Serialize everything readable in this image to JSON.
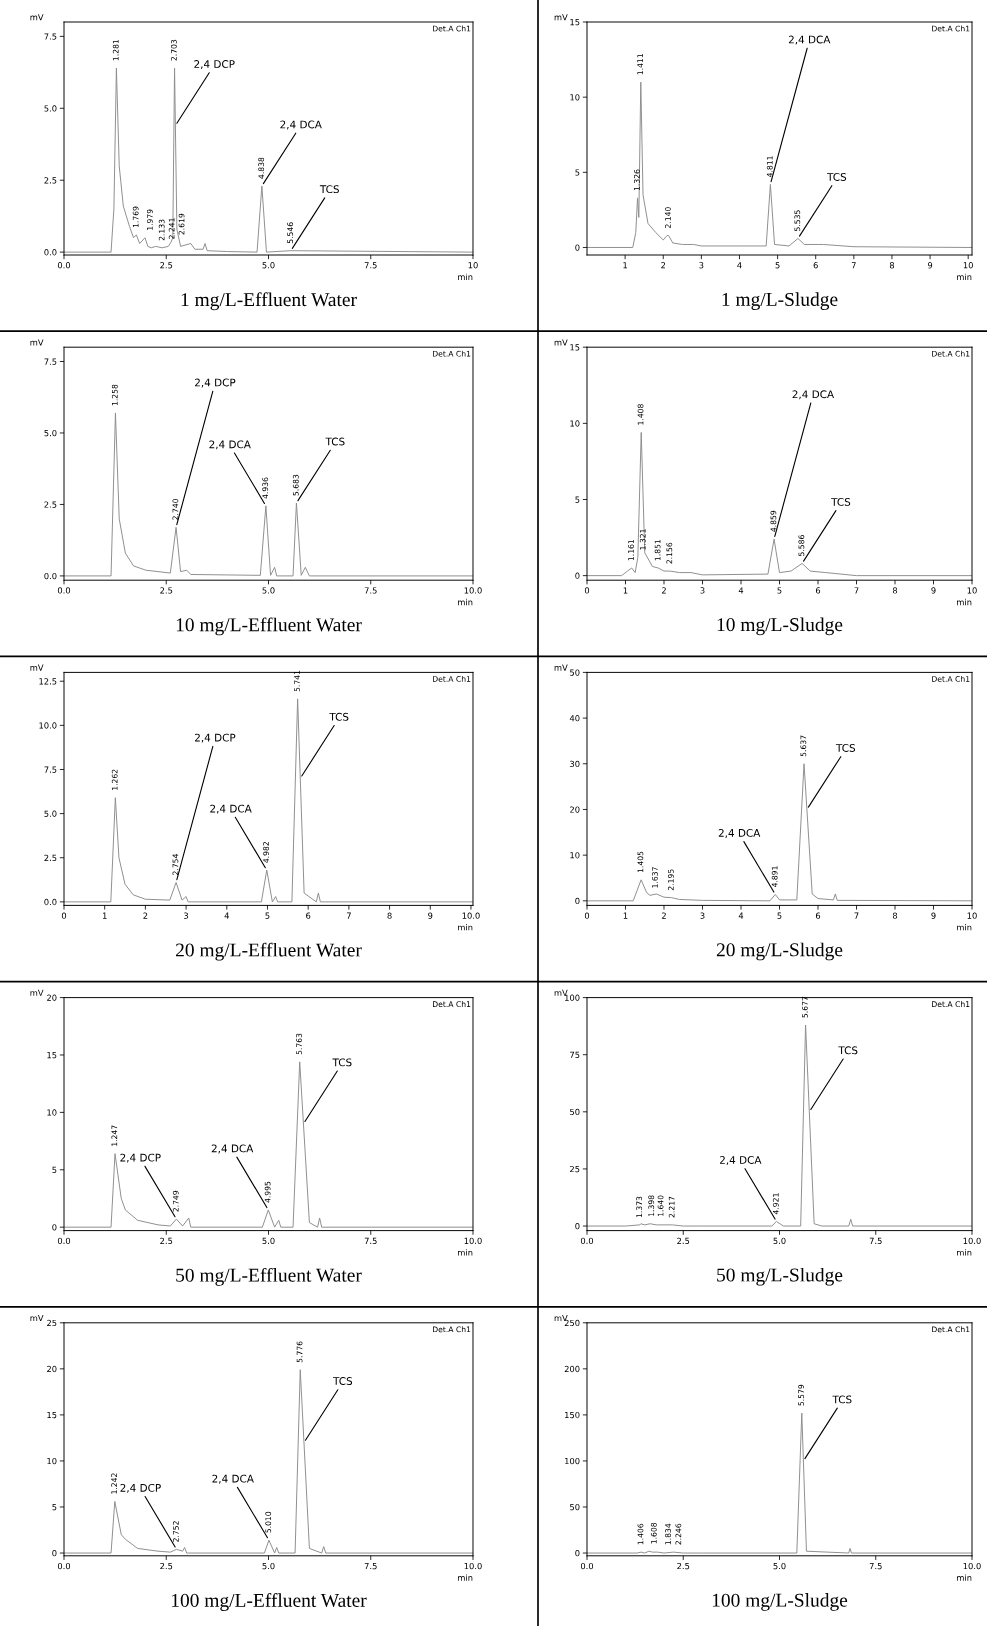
{
  "chart_data": [
    {
      "type": "line",
      "title": "1 mg/L-Effluent Water",
      "xlabel": "min",
      "ylabel": "mV",
      "xlim": [
        0,
        10
      ],
      "xticks": [
        {
          "value": 0,
          "label": "0.0"
        },
        {
          "value": 2.5,
          "label": "2.5"
        },
        {
          "value": 5,
          "label": "5.0"
        },
        {
          "value": 7.5,
          "label": "7.5"
        },
        10
      ],
      "ylim": [
        -0.1,
        8.0
      ],
      "yticks": [
        {
          "value": 0,
          "label": "0.0"
        },
        {
          "value": 2.5,
          "label": "2.5"
        },
        {
          "value": 5,
          "label": "5.0"
        },
        {
          "value": 7.5,
          "label": "7.5"
        }
      ],
      "series": [
        {
          "color": "#8c8c8c",
          "x": [
            0,
            1.15,
            1.22,
            1.281,
            1.35,
            1.45,
            1.6,
            1.7,
            1.769,
            1.85,
            1.979,
            2.05,
            2.133,
            2.241,
            2.4,
            2.55,
            2.619,
            2.66,
            2.703,
            2.76,
            2.85,
            3.1,
            3.2,
            3.4,
            3.45,
            3.5,
            4.0,
            4.72,
            4.838,
            4.95,
            5.546,
            10
          ],
          "values": [
            0,
            0,
            1.5,
            6.4,
            3.0,
            1.6,
            0.9,
            0.5,
            0.6,
            0.3,
            0.5,
            0.2,
            0.15,
            0.2,
            0.15,
            0.2,
            0.35,
            0.5,
            6.4,
            0.8,
            0.2,
            0.3,
            0.1,
            0.1,
            0.3,
            0.05,
            0.02,
            0,
            2.3,
            0,
            0.05,
            0
          ]
        }
      ],
      "annotations": [
        "Det.A Ch1",
        {
          "text": "1.281",
          "x": 1.281,
          "y": 6.4
        },
        {
          "text": "1.769",
          "x": 1.769,
          "y": 0.6
        },
        {
          "text": "1.979",
          "x": 1.979,
          "y": 0.5
        },
        {
          "text": "2.133",
          "x": 2.133,
          "y": 0.15
        },
        {
          "text": "2.241",
          "x": 2.241,
          "y": 0.2
        },
        {
          "text": "2.619",
          "x": 2.619,
          "y": 0.35
        },
        {
          "text": "2.703",
          "x": 2.703,
          "y": 6.4
        },
        {
          "text": "4.838",
          "x": 4.838,
          "y": 2.3
        },
        {
          "text": "5.546",
          "x": 5.546,
          "y": 0.05
        },
        {
          "text": "2,4 DCP",
          "x": 2.723,
          "y": 4.4
        },
        {
          "text": "2,4 DCA",
          "x": 4.838,
          "y": 2.3
        },
        {
          "text": "TCS",
          "x": 5.546,
          "y": 0.05
        }
      ]
    },
    {
      "type": "line",
      "title": "1 mg/L-Sludge",
      "xlabel": "min",
      "ylabel": "mV",
      "xlim": [
        0,
        10.1
      ],
      "xticks": [
        1,
        2,
        3,
        4,
        5,
        6,
        7,
        8,
        9,
        10
      ],
      "ylim": [
        -0.5,
        15
      ],
      "yticks": [
        0,
        5,
        10,
        15
      ],
      "series": [
        {
          "color": "#8c8c8c",
          "x": [
            0,
            1.2,
            1.28,
            1.326,
            1.36,
            1.411,
            1.47,
            1.6,
            1.8,
            2.0,
            2.1,
            2.14,
            2.25,
            2.5,
            2.8,
            3.0,
            4.7,
            4.811,
            4.92,
            5.3,
            5.535,
            5.7,
            6.2,
            7,
            10.1
          ],
          "values": [
            0,
            0,
            1.0,
            3.3,
            2.0,
            11.0,
            3.5,
            1.6,
            1.0,
            0.5,
            0.8,
            0.8,
            0.3,
            0.2,
            0.2,
            0.1,
            0.1,
            4.2,
            0.2,
            0.1,
            0.6,
            0.2,
            0.2,
            0.05,
            0
          ]
        }
      ],
      "annotations": [
        "Det.A Ch1",
        {
          "text": "1.326",
          "x": 1.326,
          "y": 3.3
        },
        {
          "text": "1.411",
          "x": 1.411,
          "y": 11.0
        },
        {
          "text": "2.140",
          "x": 2.14,
          "y": 0.8
        },
        {
          "text": "4.811",
          "x": 4.811,
          "y": 4.2
        },
        {
          "text": "5.535",
          "x": 5.535,
          "y": 0.6
        },
        {
          "text": "2,4 DCA",
          "x": 4.811,
          "y": 4.2
        },
        {
          "text": "TCS",
          "x": 5.535,
          "y": 0.6
        }
      ]
    },
    {
      "type": "line",
      "title": "10 mg/L-Effluent Water",
      "xlabel": "min",
      "ylabel": "mV",
      "xlim": [
        0,
        10
      ],
      "xticks": [
        {
          "value": 0,
          "label": "0.0"
        },
        {
          "value": 2.5,
          "label": "2.5"
        },
        {
          "value": 5,
          "label": "5.0"
        },
        {
          "value": 7.5,
          "label": "7.5"
        },
        {
          "value": 10,
          "label": "10.0"
        }
      ],
      "ylim": [
        -0.15,
        8.0
      ],
      "yticks": [
        {
          "value": 0,
          "label": "0.0"
        },
        {
          "value": 2.5,
          "label": "2.5"
        },
        {
          "value": 5,
          "label": "5.0"
        },
        {
          "value": 7.5,
          "label": "7.5"
        }
      ],
      "series": [
        {
          "color": "#8c8c8c",
          "x": [
            0,
            1.15,
            1.258,
            1.35,
            1.5,
            1.7,
            2.0,
            2.6,
            2.74,
            2.85,
            3.0,
            3.1,
            4.8,
            4.936,
            5.05,
            5.15,
            5.2,
            5.6,
            5.683,
            5.8,
            5.9,
            6.0,
            10
          ],
          "values": [
            0,
            0,
            5.7,
            2.0,
            0.8,
            0.35,
            0.2,
            0.1,
            1.7,
            0.15,
            0.2,
            0.05,
            0.02,
            2.45,
            0.02,
            0.3,
            0,
            0,
            2.55,
            0.02,
            0.3,
            0,
            0
          ]
        }
      ],
      "annotations": [
        "Det.A Ch1",
        {
          "text": "1.258",
          "x": 1.258,
          "y": 5.7
        },
        {
          "text": "2.740",
          "x": 2.74,
          "y": 1.7
        },
        {
          "text": "4.936",
          "x": 4.936,
          "y": 2.45
        },
        {
          "text": "5.683",
          "x": 5.683,
          "y": 2.55
        },
        {
          "text": "2,4 DCP",
          "x": 2.74,
          "y": 1.7
        },
        {
          "text": "2,4 DCA",
          "x": 4.936,
          "y": 2.45
        },
        {
          "text": "TCS",
          "x": 5.683,
          "y": 2.55
        }
      ]
    },
    {
      "type": "line",
      "title": "10 mg/L-Sludge",
      "xlabel": "min",
      "ylabel": "mV",
      "xlim": [
        0,
        10
      ],
      "xticks": [
        0,
        1,
        2,
        3,
        4,
        5,
        6,
        7,
        8,
        9,
        10
      ],
      "ylim": [
        -0.3,
        15
      ],
      "yticks": [
        0,
        5,
        10,
        15
      ],
      "series": [
        {
          "color": "#8c8c8c",
          "x": [
            0,
            0.9,
            1.05,
            1.161,
            1.25,
            1.321,
            1.408,
            1.5,
            1.7,
            1.851,
            2.0,
            2.156,
            2.4,
            2.7,
            3.0,
            4.7,
            4.859,
            5.0,
            5.3,
            5.586,
            5.8,
            6.2,
            7,
            10
          ],
          "values": [
            0,
            0,
            0.3,
            0.5,
            0.2,
            1.2,
            9.4,
            1.5,
            0.6,
            0.5,
            0.3,
            0.3,
            0.2,
            0.2,
            0.05,
            0.1,
            2.4,
            0.2,
            0.3,
            0.8,
            0.3,
            0.2,
            0,
            0
          ]
        }
      ],
      "annotations": [
        "Det.A Ch1",
        {
          "text": "1.161",
          "x": 1.161,
          "y": 0.5
        },
        {
          "text": "1.321",
          "x": 1.321,
          "y": 1.2
        },
        {
          "text": "1.408",
          "x": 1.408,
          "y": 9.4
        },
        {
          "text": "1.851",
          "x": 1.851,
          "y": 0.5
        },
        {
          "text": "2.156",
          "x": 2.156,
          "y": 0.3
        },
        {
          "text": "4.859",
          "x": 4.859,
          "y": 2.4
        },
        {
          "text": "5.586",
          "x": 5.586,
          "y": 0.8
        },
        {
          "text": "2,4 DCA",
          "x": 4.859,
          "y": 2.4
        },
        {
          "text": "TCS",
          "x": 5.586,
          "y": 0.8
        }
      ]
    },
    {
      "type": "line",
      "title": "20 mg/L-Effluent Water",
      "xlabel": "min",
      "ylabel": "mV",
      "xlim": [
        0,
        10.05
      ],
      "xticks": [
        0,
        1,
        2,
        3,
        4,
        5,
        6,
        7,
        8,
        9,
        {
          "value": 10,
          "label": "10.0"
        }
      ],
      "ylim": [
        -0.2,
        13.0
      ],
      "yticks": [
        {
          "value": 0,
          "label": "0.0"
        },
        {
          "value": 2.5,
          "label": "2.5"
        },
        {
          "value": 5,
          "label": "5.0"
        },
        {
          "value": 7.5,
          "label": "7.5"
        },
        {
          "value": 10,
          "label": "10.0"
        },
        {
          "value": 12.5,
          "label": "12.5"
        }
      ],
      "series": [
        {
          "color": "#8c8c8c",
          "x": [
            0,
            1.15,
            1.262,
            1.35,
            1.5,
            1.7,
            2.0,
            2.6,
            2.754,
            2.9,
            3.0,
            3.05,
            4.85,
            4.982,
            5.12,
            5.2,
            5.25,
            5.6,
            5.741,
            5.9,
            6.2,
            6.25,
            6.3,
            10.05
          ],
          "values": [
            0,
            0,
            5.9,
            2.5,
            1.0,
            0.4,
            0.15,
            0.1,
            1.1,
            0.1,
            0.3,
            0,
            0,
            1.8,
            0,
            0.3,
            0,
            0,
            11.5,
            0.5,
            0,
            0.5,
            0,
            0
          ]
        }
      ],
      "annotations": [
        "Det.A Ch1",
        {
          "text": "1.262",
          "x": 1.262,
          "y": 5.9
        },
        {
          "text": "2.754",
          "x": 2.754,
          "y": 1.1
        },
        {
          "text": "4.982",
          "x": 4.982,
          "y": 1.8
        },
        {
          "text": "5.741",
          "x": 5.741,
          "y": 11.5
        },
        {
          "text": "2,4 DCP",
          "x": 2.754,
          "y": 1.1
        },
        {
          "text": "2,4 DCA",
          "x": 4.982,
          "y": 1.8
        },
        {
          "text": "TCS",
          "x": 5.806,
          "y": 7
        }
      ]
    },
    {
      "type": "line",
      "title": "20 mg/L-Sludge",
      "xlabel": "min",
      "ylabel": "mV",
      "xlim": [
        0,
        10
      ],
      "xticks": [
        0,
        1,
        2,
        3,
        4,
        5,
        6,
        7,
        8,
        9,
        10
      ],
      "ylim": [
        -1,
        50
      ],
      "yticks": [
        0,
        10,
        20,
        30,
        40,
        50
      ],
      "series": [
        {
          "color": "#8c8c8c",
          "x": [
            0,
            1.2,
            1.405,
            1.55,
            1.637,
            1.8,
            2.0,
            2.195,
            2.4,
            3,
            4.75,
            4.891,
            5.0,
            5.45,
            5.637,
            5.85,
            6.0,
            6.4,
            6.45,
            6.5,
            10
          ],
          "values": [
            0,
            0,
            4.6,
            1.8,
            1.2,
            1.5,
            0.8,
            0.7,
            0.3,
            0.1,
            0,
            1.4,
            0.2,
            0.2,
            30,
            1.5,
            0.5,
            0.2,
            1.5,
            0.1,
            0
          ]
        }
      ],
      "annotations": [
        "Det.A Ch1",
        {
          "text": "1.405",
          "x": 1.405,
          "y": 4.6
        },
        {
          "text": "1.637",
          "x": 1.637,
          "y": 1.2
        },
        {
          "text": "2.195",
          "x": 2.195,
          "y": 0.7
        },
        {
          "text": "4.891",
          "x": 4.891,
          "y": 1.4
        },
        {
          "text": "5.637",
          "x": 5.637,
          "y": 30
        },
        {
          "text": "2,4 DCA",
          "x": 4.891,
          "y": 1.4
        },
        {
          "text": "TCS",
          "x": 5.712,
          "y": 20
        }
      ]
    },
    {
      "type": "line",
      "title": "50 mg/L-Effluent Water",
      "xlabel": "min",
      "ylabel": "mV",
      "xlim": [
        0,
        10
      ],
      "xticks": [
        {
          "value": 0,
          "label": "0.0"
        },
        {
          "value": 2.5,
          "label": "2.5"
        },
        {
          "value": 5,
          "label": "5.0"
        },
        {
          "value": 7.5,
          "label": "7.5"
        },
        {
          "value": 10,
          "label": "10.0"
        }
      ],
      "ylim": [
        -0.3,
        20
      ],
      "yticks": [
        0,
        5,
        10,
        15,
        20
      ],
      "series": [
        {
          "color": "#8c8c8c",
          "x": [
            0,
            1.15,
            1.247,
            1.4,
            1.5,
            1.8,
            2.3,
            2.6,
            2.749,
            2.9,
            3.05,
            3.1,
            4.85,
            4.995,
            5.15,
            5.25,
            5.3,
            5.6,
            5.763,
            6.0,
            6.2,
            6.25,
            6.3,
            10
          ],
          "values": [
            0,
            0,
            6.4,
            2.5,
            1.5,
            0.6,
            0.2,
            0.1,
            0.7,
            0.1,
            0.8,
            0,
            0,
            1.5,
            0,
            0.6,
            0,
            0,
            14.4,
            0.4,
            0,
            0.8,
            0,
            0
          ]
        }
      ],
      "annotations": [
        "Det.A Ch1",
        {
          "text": "1.247",
          "x": 1.247,
          "y": 6.4
        },
        {
          "text": "2.749",
          "x": 2.749,
          "y": 0.7
        },
        {
          "text": "4.995",
          "x": 4.995,
          "y": 1.5
        },
        {
          "text": "5.763",
          "x": 5.763,
          "y": 14.4
        },
        {
          "text": "2,4 DCP",
          "x": 2.749,
          "y": 0.7
        },
        {
          "text": "2,4 DCA",
          "x": 4.995,
          "y": 1.5
        },
        {
          "text": "TCS",
          "x": 5.854,
          "y": 9
        }
      ]
    },
    {
      "type": "line",
      "title": "50 mg/L-Sludge",
      "xlabel": "min",
      "ylabel": "mV",
      "xlim": [
        0,
        10
      ],
      "xticks": [
        {
          "value": 0,
          "label": "0.0"
        },
        {
          "value": 2.5,
          "label": "2.5"
        },
        {
          "value": 5,
          "label": "5.0"
        },
        {
          "value": 7.5,
          "label": "7.5"
        },
        {
          "value": 10,
          "label": "10.0"
        }
      ],
      "ylim": [
        -2,
        100
      ],
      "yticks": [
        0,
        25,
        50,
        75,
        100
      ],
      "series": [
        {
          "color": "#8c8c8c",
          "x": [
            0,
            1.0,
            1.373,
            1.398,
            1.5,
            1.64,
            1.8,
            2.217,
            2.5,
            3,
            4.8,
            4.921,
            5.1,
            5.55,
            5.677,
            5.9,
            6.1,
            6.8,
            6.85,
            6.9,
            10
          ],
          "values": [
            0,
            0,
            0.5,
            1,
            0.5,
            1,
            0.5,
            0.5,
            0,
            0,
            0,
            2,
            0,
            0,
            88,
            1,
            0,
            0,
            3,
            0,
            0
          ]
        }
      ],
      "annotations": [
        "Det.A Ch1",
        {
          "text": "1.373",
          "x": 1.373,
          "y": 0.5
        },
        {
          "text": "1.398",
          "x": 1.398,
          "y": 1
        },
        {
          "text": "1.640",
          "x": 1.64,
          "y": 1
        },
        {
          "text": "2.217",
          "x": 2.217,
          "y": 0.5
        },
        {
          "text": "4.921",
          "x": 4.921,
          "y": 2
        },
        {
          "text": "5.677",
          "x": 5.677,
          "y": 88
        },
        {
          "text": "2,4 DCA",
          "x": 4.921,
          "y": 2
        },
        {
          "text": "TCS",
          "x": 5.774,
          "y": 50
        }
      ]
    },
    {
      "type": "line",
      "title": "100 mg/L-Effluent Water",
      "xlabel": "min",
      "ylabel": "mV",
      "xlim": [
        0,
        10
      ],
      "xticks": [
        {
          "value": 0,
          "label": "0.0"
        },
        {
          "value": 2.5,
          "label": "2.5"
        },
        {
          "value": 5,
          "label": "5.0"
        },
        {
          "value": 7.5,
          "label": "7.5"
        },
        {
          "value": 10,
          "label": "10.0"
        }
      ],
      "ylim": [
        -0.3,
        25
      ],
      "yticks": [
        0,
        5,
        10,
        15,
        20,
        25
      ],
      "series": [
        {
          "color": "#8c8c8c",
          "x": [
            0,
            1.15,
            1.242,
            1.4,
            1.5,
            1.8,
            2.3,
            2.6,
            2.752,
            2.9,
            2.95,
            3.0,
            4.9,
            5.01,
            5.15,
            5.2,
            5.25,
            5.65,
            5.776,
            6.0,
            6.3,
            6.35,
            6.4,
            10
          ],
          "values": [
            0,
            0,
            5.6,
            2.0,
            1.5,
            0.5,
            0.2,
            0.1,
            0.4,
            0.2,
            0.6,
            0,
            0,
            1.4,
            0,
            0.6,
            0,
            0,
            19.9,
            0.5,
            0,
            0.7,
            0,
            0
          ]
        }
      ],
      "annotations": [
        "Det.A Ch1",
        {
          "text": "1.242",
          "x": 1.242,
          "y": 5.6
        },
        {
          "text": "2.752",
          "x": 2.752,
          "y": 0.4
        },
        {
          "text": "5.010",
          "x": 5.01,
          "y": 1.4
        },
        {
          "text": "5.776",
          "x": 5.776,
          "y": 19.9
        },
        {
          "text": "2,4 DCP",
          "x": 2.752,
          "y": 0.4
        },
        {
          "text": "2,4 DCA",
          "x": 5.01,
          "y": 1.4
        },
        {
          "text": "TCS",
          "x": 5.867,
          "y": 12
        }
      ]
    },
    {
      "type": "line",
      "title": "100 mg/L-Sludge",
      "xlabel": "min",
      "ylabel": "mV",
      "xlim": [
        0,
        10
      ],
      "xticks": [
        {
          "value": 0,
          "label": "0.0"
        },
        {
          "value": 2.5,
          "label": "2.5"
        },
        {
          "value": 5,
          "label": "5.0"
        },
        {
          "value": 7.5,
          "label": "7.5"
        },
        {
          "value": 10,
          "label": "10.0"
        }
      ],
      "ylim": [
        -3,
        250
      ],
      "yticks": [
        0,
        50,
        100,
        150,
        200,
        250
      ],
      "series": [
        {
          "color": "#8c8c8c",
          "x": [
            0,
            1.3,
            1.406,
            1.5,
            1.608,
            1.7,
            1.834,
            2.0,
            2.246,
            2.5,
            3,
            5.45,
            5.579,
            5.7,
            6.8,
            6.83,
            6.87,
            10
          ],
          "values": [
            0,
            0,
            1,
            0,
            2,
            1,
            1,
            0,
            1,
            0,
            0,
            0,
            152,
            2,
            0,
            5,
            0,
            0
          ]
        }
      ],
      "annotations": [
        "Det.A Ch1",
        {
          "text": "1.406",
          "x": 1.406,
          "y": 1
        },
        {
          "text": "1.608",
          "x": 1.608,
          "y": 2
        },
        {
          "text": "1.834",
          "x": 1.834,
          "y": 1
        },
        {
          "text": "2.246",
          "x": 2.246,
          "y": 1
        },
        {
          "text": "5.579",
          "x": 5.579,
          "y": 152
        },
        {
          "text": "TCS",
          "x": 5.621,
          "y": 100
        }
      ]
    }
  ]
}
